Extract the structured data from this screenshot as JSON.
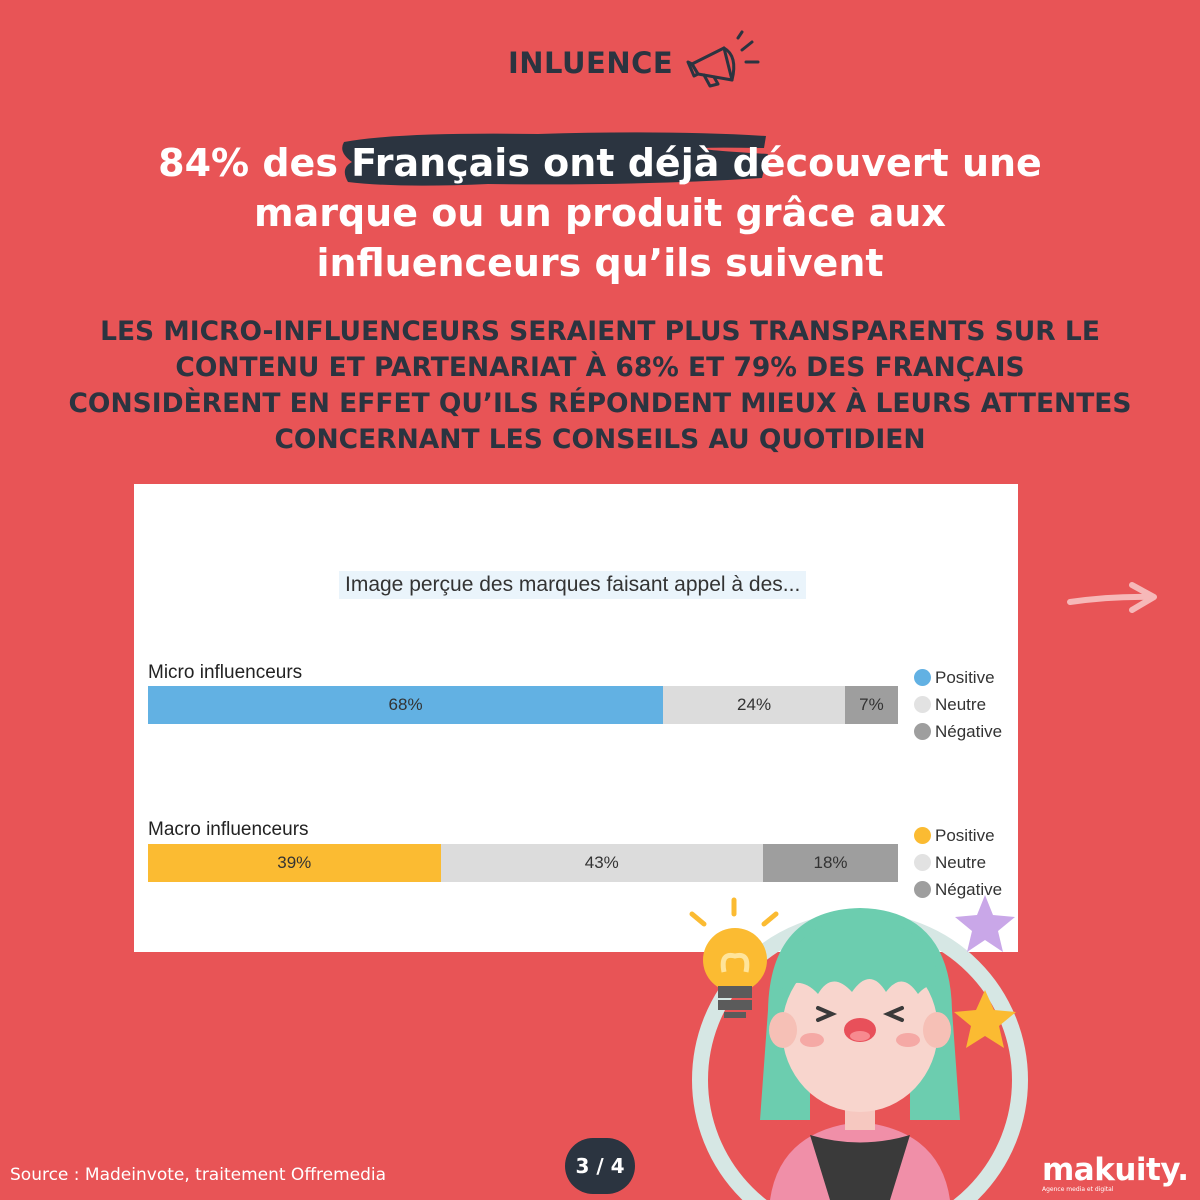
{
  "header": {
    "section_label": "INLUENCE",
    "icon": "megaphone-icon"
  },
  "headline": {
    "line1_pre": "84% des ",
    "line1_highlight": "Français ont déjà dé",
    "line1_post": "couvert une",
    "line2": "marque ou un produit grâce aux",
    "line3": "influenceurs qu’ils suivent"
  },
  "subhead": {
    "line1": "LES MICRO-INFLUENCEURS SERAIENT PLUS TRANSPARENTS SUR LE",
    "line2": "CONTENU ET PARTENARIAT À 68% ET 79% DES FRANÇAIS",
    "line3": "CONSIDÈRENT EN EFFET QU’ILS RÉPONDENT MIEUX À LEURS ATTENTES",
    "line4": "CONCERNANT LES CONSEILS AU QUOTIDIEN"
  },
  "chart_data": {
    "type": "bar",
    "orientation": "horizontal-stacked",
    "title": "Image perçue des marques faisant appel à des...",
    "categories": [
      "Micro influenceurs",
      "Macro influenceurs"
    ],
    "series": [
      {
        "name": "Positive",
        "values": [
          68,
          39
        ]
      },
      {
        "name": "Neutre",
        "values": [
          24,
          43
        ]
      },
      {
        "name": "Négative",
        "values": [
          7,
          18
        ]
      }
    ],
    "data_labels": [
      [
        "68%",
        "24%",
        "7%"
      ],
      [
        "39%",
        "43%",
        "18%"
      ]
    ],
    "colors": {
      "micro_positive": "#62b1e3",
      "macro_positive": "#fbbb32",
      "neutral": "#dcdcdc",
      "negative": "#9e9e9e"
    },
    "legend_position": "right",
    "legend": {
      "micro": [
        "Positive",
        "Neutre",
        "Négative"
      ],
      "macro": [
        "Positive",
        "Neutre",
        "Négative"
      ]
    }
  },
  "footer": {
    "source": "Source : Madeinvote, traitement Offremedia",
    "page": "3 / 4",
    "brand": "makuity.",
    "brand_tagline": "Agence media et digital"
  },
  "colors": {
    "background": "#e85456",
    "dark": "#2b3440",
    "white": "#ffffff"
  },
  "decorations": [
    "arrow-right-icon",
    "lightbulb-icon",
    "star-icon",
    "character-illustration"
  ]
}
